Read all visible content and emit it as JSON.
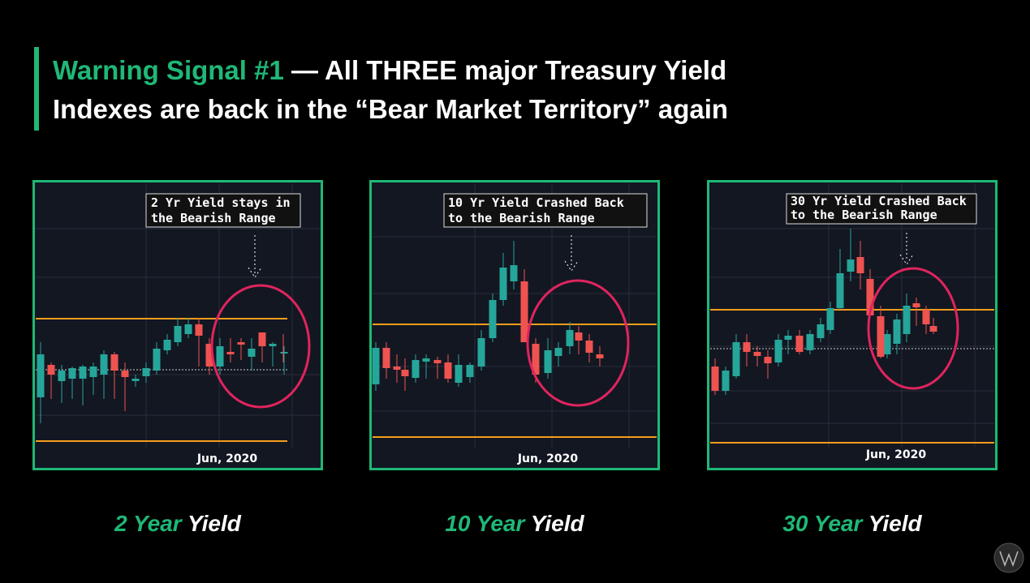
{
  "title": {
    "highlight": "Warning Signal #1",
    "rest_line1": "— All THREE major Treasury Yield",
    "rest_line2": "Indexes are back in the “Bear Market Territory” again"
  },
  "panels": [
    {
      "annotation": [
        "2 Yr Yield stays in",
        "the Bearish Range"
      ],
      "date_label": "Jun, 2020",
      "caption": {
        "term": "2 Year",
        "word": "Yield"
      }
    },
    {
      "annotation": [
        "10 Yr Yield Crashed Back",
        "to the Bearish Range"
      ],
      "date_label": "Jun, 2020",
      "caption": {
        "term": "10 Year",
        "word": "Yield"
      }
    },
    {
      "annotation": [
        "30 Yr Yield Crashed Back",
        "to the Bearish Range"
      ],
      "date_label": "Jun, 2020",
      "caption": {
        "term": "30 Year",
        "word": "Yield"
      }
    }
  ]
}
